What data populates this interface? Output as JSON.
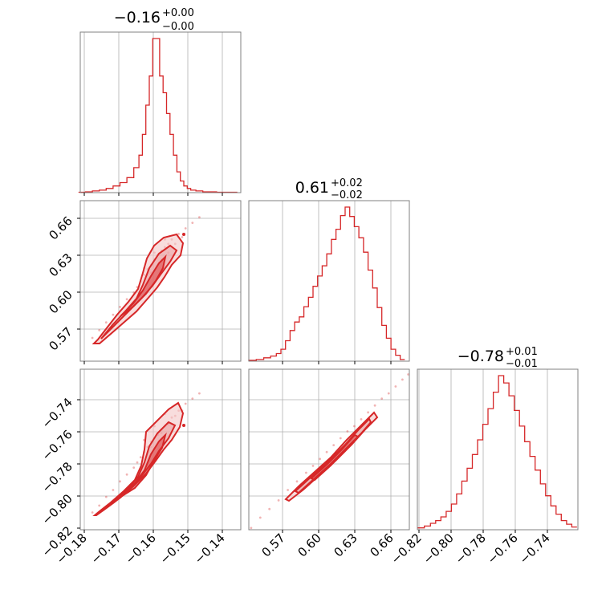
{
  "figure": {
    "accent_color": "#d62728",
    "grid_color": "#b0b0b0",
    "frame_color": "#808080"
  },
  "chart_data": [
    {
      "type": "histogram",
      "panel": "diag-0",
      "title": {
        "median": "−0.16",
        "upper": "+0.00",
        "lower": "−0.00"
      },
      "xlim": [
        -0.1815,
        -0.135
      ],
      "grid": true,
      "x": [
        -0.181,
        -0.179,
        -0.177,
        -0.175,
        -0.173,
        -0.171,
        -0.169,
        -0.167,
        -0.165,
        -0.164,
        -0.163,
        -0.162,
        -0.161,
        -0.16,
        -0.159,
        -0.158,
        -0.157,
        -0.156,
        -0.155,
        -0.154,
        -0.153,
        -0.152,
        -0.151,
        -0.15,
        -0.149,
        -0.147,
        -0.145,
        -0.143,
        -0.141,
        -0.139,
        -0.137
      ],
      "values": [
        0.5,
        1,
        2,
        3,
        5,
        8,
        12,
        18,
        30,
        45,
        70,
        105,
        140,
        185,
        185,
        140,
        120,
        95,
        70,
        45,
        25,
        14,
        8,
        5,
        3,
        2,
        1,
        1,
        0.5,
        0.5,
        0.5
      ]
    },
    {
      "type": "histogram",
      "panel": "diag-1",
      "title": {
        "median": "0.61",
        "upper": "+0.02",
        "lower": "−0.02"
      },
      "xlim": [
        0.53,
        0.67
      ],
      "grid": true,
      "x": [
        0.533,
        0.54,
        0.546,
        0.552,
        0.556,
        0.56,
        0.564,
        0.568,
        0.572,
        0.576,
        0.58,
        0.584,
        0.588,
        0.592,
        0.596,
        0.6,
        0.604,
        0.608,
        0.612,
        0.616,
        0.62,
        0.624,
        0.628,
        0.632,
        0.636,
        0.64,
        0.644,
        0.648,
        0.652,
        0.656,
        0.66,
        0.664
      ],
      "values": [
        1,
        2,
        4,
        6,
        9,
        14,
        24,
        36,
        46,
        52,
        64,
        75,
        88,
        100,
        112,
        126,
        143,
        155,
        171,
        181,
        170,
        158,
        145,
        128,
        107,
        86,
        63,
        42,
        27,
        14,
        7,
        2
      ]
    },
    {
      "type": "histogram",
      "panel": "diag-2",
      "title": {
        "median": "−0.78",
        "upper": "+0.01",
        "lower": "−0.01"
      },
      "xlim": [
        -0.82,
        -0.728
      ],
      "grid": true,
      "x": [
        -0.818,
        -0.814,
        -0.811,
        -0.808,
        -0.805,
        -0.802,
        -0.799,
        -0.796,
        -0.793,
        -0.79,
        -0.787,
        -0.784,
        -0.781,
        -0.778,
        -0.775,
        -0.772,
        -0.769,
        -0.766,
        -0.763,
        -0.76,
        -0.757,
        -0.754,
        -0.751,
        -0.748,
        -0.745,
        -0.742,
        -0.739,
        -0.736,
        -0.733,
        -0.73
      ],
      "values": [
        2,
        4,
        7,
        10,
        14,
        20,
        28,
        39,
        53,
        67,
        82,
        98,
        115,
        132,
        150,
        168,
        160,
        146,
        130,
        113,
        96,
        80,
        65,
        50,
        37,
        26,
        17,
        10,
        6,
        3
      ]
    },
    {
      "type": "scatter",
      "panel": "pair-1-0",
      "xlim": [
        -0.1815,
        -0.135
      ],
      "ylim": [
        0.53,
        0.675
      ],
      "grid": true,
      "contour_levels": 3,
      "points": [
        [
          -0.178,
          0.551
        ],
        [
          -0.176,
          0.558
        ],
        [
          -0.174,
          0.565
        ],
        [
          -0.172,
          0.572
        ],
        [
          -0.17,
          0.579
        ],
        [
          -0.168,
          0.586
        ],
        [
          -0.166,
          0.592
        ],
        [
          -0.165,
          0.597
        ],
        [
          -0.164,
          0.602
        ],
        [
          -0.163,
          0.608
        ],
        [
          -0.162,
          0.613
        ],
        [
          -0.161,
          0.617
        ],
        [
          -0.16,
          0.622
        ],
        [
          -0.159,
          0.626
        ],
        [
          -0.158,
          0.63
        ],
        [
          -0.157,
          0.633
        ],
        [
          -0.156,
          0.636
        ],
        [
          -0.155,
          0.64
        ],
        [
          -0.153,
          0.645
        ],
        [
          -0.151,
          0.65
        ],
        [
          -0.149,
          0.655
        ],
        [
          -0.147,
          0.66
        ],
        [
          -0.161,
          0.61
        ],
        [
          -0.158,
          0.622
        ],
        [
          -0.156,
          0.628
        ],
        [
          -0.154,
          0.636
        ],
        [
          -0.152,
          0.642
        ],
        [
          -0.163,
          0.614
        ],
        [
          -0.16,
          0.628
        ],
        [
          -0.157,
          0.64
        ]
      ]
    },
    {
      "type": "scatter",
      "panel": "pair-2-0",
      "xlim": [
        -0.1815,
        -0.135
      ],
      "ylim": [
        -0.82,
        -0.727
      ],
      "grid": true,
      "contour_levels": 3,
      "points": [
        [
          -0.178,
          -0.81
        ],
        [
          -0.176,
          -0.806
        ],
        [
          -0.174,
          -0.801
        ],
        [
          -0.172,
          -0.797
        ],
        [
          -0.17,
          -0.792
        ],
        [
          -0.168,
          -0.788
        ],
        [
          -0.166,
          -0.784
        ],
        [
          -0.165,
          -0.781
        ],
        [
          -0.164,
          -0.778
        ],
        [
          -0.163,
          -0.775
        ],
        [
          -0.162,
          -0.772
        ],
        [
          -0.161,
          -0.769
        ],
        [
          -0.16,
          -0.767
        ],
        [
          -0.159,
          -0.765
        ],
        [
          -0.158,
          -0.762
        ],
        [
          -0.157,
          -0.76
        ],
        [
          -0.156,
          -0.758
        ],
        [
          -0.155,
          -0.755
        ],
        [
          -0.153,
          -0.751
        ],
        [
          -0.151,
          -0.747
        ],
        [
          -0.149,
          -0.744
        ],
        [
          -0.147,
          -0.741
        ],
        [
          -0.161,
          -0.772
        ],
        [
          -0.158,
          -0.764
        ],
        [
          -0.156,
          -0.759
        ],
        [
          -0.154,
          -0.754
        ],
        [
          -0.152,
          -0.751
        ],
        [
          -0.163,
          -0.768
        ],
        [
          -0.16,
          -0.76
        ],
        [
          -0.157,
          -0.753
        ]
      ]
    },
    {
      "type": "scatter",
      "panel": "pair-2-1",
      "xlim": [
        0.53,
        0.67
      ],
      "ylim": [
        -0.82,
        -0.727
      ],
      "grid": true,
      "contour_levels": 3,
      "points": [
        [
          0.532,
          -0.819
        ],
        [
          0.54,
          -0.813
        ],
        [
          0.548,
          -0.808
        ],
        [
          0.556,
          -0.803
        ],
        [
          0.564,
          -0.797
        ],
        [
          0.572,
          -0.792
        ],
        [
          0.58,
          -0.787
        ],
        [
          0.586,
          -0.783
        ],
        [
          0.592,
          -0.779
        ],
        [
          0.598,
          -0.775
        ],
        [
          0.604,
          -0.771
        ],
        [
          0.61,
          -0.767
        ],
        [
          0.616,
          -0.763
        ],
        [
          0.622,
          -0.76
        ],
        [
          0.628,
          -0.756
        ],
        [
          0.634,
          -0.752
        ],
        [
          0.64,
          -0.748
        ],
        [
          0.646,
          -0.744
        ],
        [
          0.652,
          -0.741
        ],
        [
          0.658,
          -0.737
        ],
        [
          0.664,
          -0.733
        ],
        [
          0.669,
          -0.73
        ]
      ]
    }
  ],
  "axes": {
    "x0_ticks": [
      "−0.18",
      "−0.17",
      "−0.16",
      "−0.15",
      "−0.14"
    ],
    "x1_ticks": [
      "0.57",
      "0.60",
      "0.63",
      "0.66"
    ],
    "x2_ticks": [
      "−0.82",
      "−0.80",
      "−0.78",
      "−0.76",
      "−0.74"
    ],
    "y1_ticks": [
      "0.66",
      "0.63",
      "0.60",
      "0.57"
    ],
    "y2_ticks": [
      "−0.74",
      "−0.76",
      "−0.78",
      "−0.80",
      "−0.82"
    ]
  }
}
